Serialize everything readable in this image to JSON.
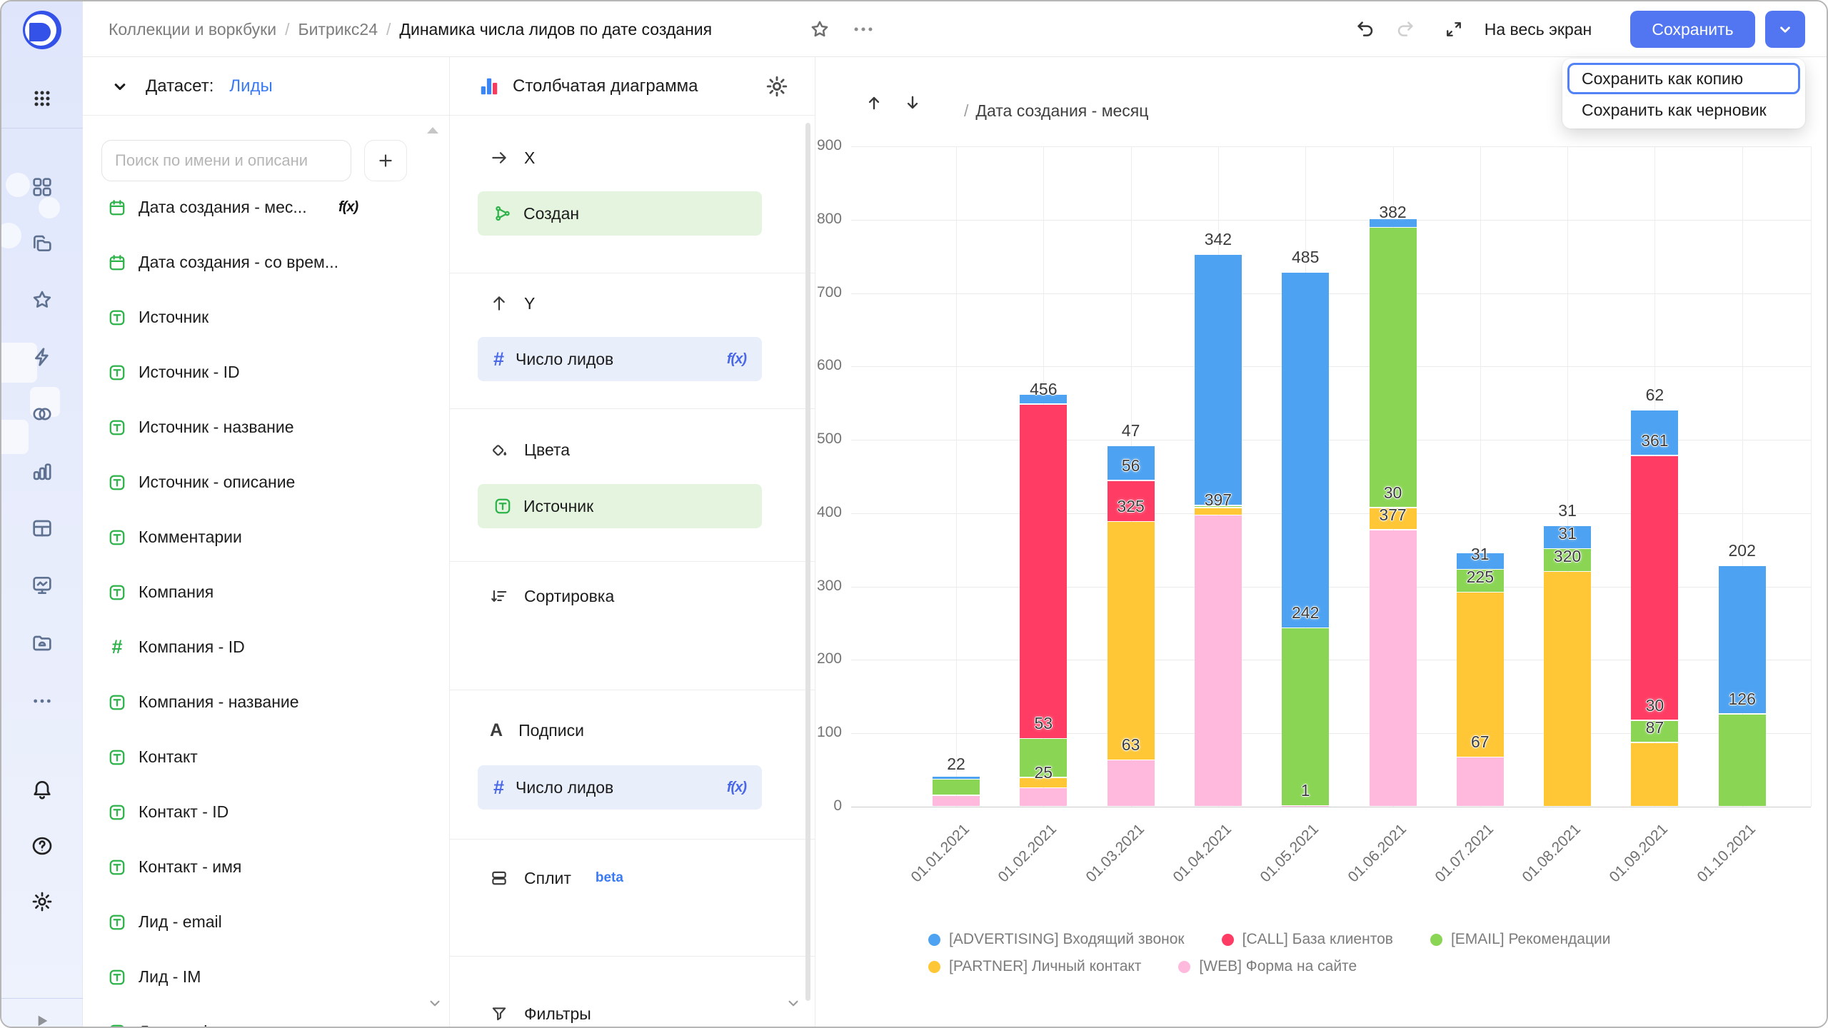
{
  "topbar": {
    "breadcrumbs": [
      "Коллекции и воркбуки",
      "Битрикс24",
      "Динамика числа лидов по дате создания"
    ],
    "separator": "/",
    "fullscreen_label": "На весь экран",
    "save_label": "Сохранить"
  },
  "save_menu": {
    "items": [
      "Сохранить как копию",
      "Сохранить как черновик"
    ],
    "focused_index": 0,
    "accent_color": "#5282f5"
  },
  "sidebar_rail": {
    "items": [
      "apps-grid",
      "dashboard-grid",
      "collections-folders",
      "favorites-star",
      "connections-bolt",
      "datasets-circles",
      "charts-bars",
      "tables-grid",
      "editor-monitor",
      "storage-cloud-folder",
      "more-ellipsis",
      "notifications-bell",
      "help-question",
      "settings-gear",
      "expand-play"
    ]
  },
  "dataset_panel": {
    "header_label": "Датасет:",
    "dataset_name": "Лиды",
    "search_placeholder": "Поиск по имени и описани",
    "add_button": "+",
    "fx_label": "f(x)",
    "fields": [
      {
        "icon": "calendar",
        "label": "Дата создания - мес...",
        "fx": true
      },
      {
        "icon": "calendar",
        "label": "Дата создания - со врем..."
      },
      {
        "icon": "text",
        "label": "Источник"
      },
      {
        "icon": "text",
        "label": "Источник - ID"
      },
      {
        "icon": "text",
        "label": "Источник - название"
      },
      {
        "icon": "text",
        "label": "Источник - описание"
      },
      {
        "icon": "text",
        "label": "Комментарии"
      },
      {
        "icon": "text",
        "label": "Компания"
      },
      {
        "icon": "number",
        "label": "Компания - ID"
      },
      {
        "icon": "text",
        "label": "Компания - название"
      },
      {
        "icon": "text",
        "label": "Контакт"
      },
      {
        "icon": "text",
        "label": "Контакт - ID"
      },
      {
        "icon": "text",
        "label": "Контакт - имя"
      },
      {
        "icon": "text",
        "label": "Лид - email"
      },
      {
        "icon": "text",
        "label": "Лид - IM"
      },
      {
        "icon": "text",
        "label": "Лид - web"
      }
    ]
  },
  "config_panel": {
    "title": "Столбчатая диаграмма",
    "field_green_color": "#2eb34a",
    "sections": [
      {
        "id": "x",
        "icon": "arrow-right",
        "label": "X",
        "chips": [
          {
            "icon": "hierarchy",
            "label": "Создан",
            "style": "green"
          }
        ]
      },
      {
        "id": "y",
        "icon": "arrow-up",
        "label": "Y",
        "chips": [
          {
            "icon": "hash",
            "label": "Число лидов",
            "style": "blue",
            "fx": true
          }
        ]
      },
      {
        "id": "colors",
        "icon": "paint",
        "label": "Цвета",
        "chips": [
          {
            "icon": "text",
            "label": "Источник",
            "style": "green"
          }
        ]
      },
      {
        "id": "sort",
        "icon": "sort",
        "label": "Сортировка",
        "chips": []
      },
      {
        "id": "labels",
        "icon": "letter-a",
        "label": "Подписи",
        "chips": [
          {
            "icon": "hash",
            "label": "Число лидов",
            "style": "blue",
            "fx": true
          }
        ]
      },
      {
        "id": "split",
        "icon": "split",
        "label": "Сплит",
        "badge": "beta",
        "chips": []
      },
      {
        "id": "filters",
        "icon": "funnel",
        "label": "Фильтры",
        "chips": []
      }
    ]
  },
  "chart_header": {
    "prefix": "/",
    "title": "Дата создания - месяц"
  },
  "chart_data": {
    "type": "bar",
    "stacked": true,
    "title": "Дата создания - месяц",
    "xlabel": "",
    "ylabel": "",
    "ylim": [
      0,
      900
    ],
    "ytick_step": 100,
    "grid": true,
    "legend_position": "bottom",
    "categories": [
      "01.01.2021",
      "01.02.2021",
      "01.03.2021",
      "01.04.2021",
      "01.05.2021",
      "01.06.2021",
      "01.07.2021",
      "01.08.2021",
      "01.09.2021",
      "01.10.2021"
    ],
    "series": [
      {
        "name": "[WEB] Форма на сайте",
        "color": "#FFB9DD",
        "values": [
          15,
          25,
          63,
          397,
          1,
          377,
          67,
          0,
          0,
          0
        ],
        "show_label": [
          false,
          true,
          true,
          true,
          true,
          true,
          true,
          false,
          false,
          false
        ]
      },
      {
        "name": "[PARTNER] Личный контакт",
        "color": "#FFC636",
        "values": [
          0,
          14,
          325,
          10,
          0,
          30,
          225,
          320,
          87,
          0
        ],
        "show_label": [
          false,
          false,
          true,
          false,
          false,
          true,
          true,
          true,
          true,
          false
        ]
      },
      {
        "name": "[EMAIL] Рекомендации",
        "color": "#8AD554",
        "values": [
          22,
          53,
          0,
          3,
          242,
          382,
          31,
          31,
          30,
          126
        ],
        "show_label": [
          true,
          true,
          false,
          false,
          true,
          true,
          true,
          true,
          true,
          true
        ]
      },
      {
        "name": "[CALL] База клиентов",
        "color": "#FF3D64",
        "values": [
          0,
          456,
          56,
          0,
          0,
          0,
          0,
          0,
          361,
          0
        ],
        "show_label": [
          false,
          true,
          true,
          false,
          false,
          false,
          false,
          false,
          true,
          false
        ]
      },
      {
        "name": "[ADVERTISING] Входящий звонок",
        "color": "#4DA2F1",
        "values": [
          4,
          13,
          47,
          342,
          485,
          12,
          22,
          31,
          62,
          202
        ],
        "show_label": [
          false,
          false,
          true,
          true,
          true,
          false,
          false,
          true,
          true,
          true
        ]
      }
    ],
    "legend_rows": [
      [
        4,
        3,
        2
      ],
      [
        1,
        0
      ]
    ]
  }
}
